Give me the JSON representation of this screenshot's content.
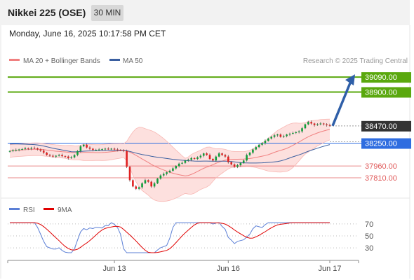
{
  "header": {
    "title": "Nikkei 225 (OSE)",
    "timeframe": "30 MIN"
  },
  "datetime": "Monday, June 16, 2025 10:17:58 PM CET",
  "legend": {
    "ma20": "MA 20 + Bollinger Bands",
    "ma50": "MA 50",
    "copyright": "Research © 2025 Trading Central",
    "rsi": "RSI",
    "rsi_ma": "9MA"
  },
  "colors": {
    "ma20": "#f08080",
    "ma50": "#3a5fa0",
    "bollinger_fill": "#fde0de",
    "candle_up": "#0f9e3a",
    "candle_down": "#e02020",
    "target": "#5aa80e",
    "pivot": "#2f6de0",
    "support": "#e05a5a",
    "last": "#333333",
    "arrow": "#2f5fa8",
    "rsi": "#5b7fd6",
    "rsi_ma": "#e00000"
  },
  "chart_data": [
    {
      "type": "candlestick",
      "title": "Nikkei 225 (OSE)",
      "timeframe": "30 MIN",
      "x_labels": [
        "Jun 13",
        "Jun 16",
        "Jun 17"
      ],
      "ylim": [
        37650,
        39180
      ],
      "levels": [
        {
          "value": 39090,
          "label": "39090.00",
          "kind": "resistance"
        },
        {
          "value": 38900,
          "label": "38900.00",
          "kind": "resistance"
        },
        {
          "value": 38470,
          "label": "38470.00",
          "kind": "last"
        },
        {
          "value": 38250,
          "label": "38250.00",
          "kind": "pivot"
        },
        {
          "value": 37960,
          "label": "37960.00",
          "kind": "support"
        },
        {
          "value": 37810,
          "label": "37810.00",
          "kind": "support"
        }
      ],
      "arrow": {
        "from": 38470,
        "to": 39090,
        "direction": "up"
      },
      "close_series": [
        38150,
        38160,
        38165,
        38170,
        38175,
        38185,
        38180,
        38190,
        38185,
        38170,
        38155,
        38130,
        38100,
        38090,
        38080,
        38090,
        38100,
        38085,
        38080,
        38060,
        38070,
        38100,
        38150,
        38210,
        38230,
        38195,
        38180,
        38165,
        38165,
        38170,
        38175,
        38180,
        38175,
        38180,
        38170,
        38165,
        38160,
        38150,
        37950,
        37780,
        37700,
        37670,
        37690,
        37740,
        37780,
        37760,
        37700,
        37740,
        37800,
        37840,
        37860,
        37880,
        37900,
        37930,
        37960,
        37990,
        38000,
        38030,
        38040,
        38060,
        38050,
        38070,
        38090,
        38120,
        38100,
        38050,
        38030,
        38080,
        38120,
        38100,
        38080,
        38010,
        37980,
        37950,
        37970,
        38000,
        38030,
        38100,
        38130,
        38170,
        38200,
        38230,
        38250,
        38280,
        38310,
        38330,
        38350,
        38360,
        38330,
        38340,
        38360,
        38370,
        38380,
        38390,
        38400,
        38440,
        38490,
        38520,
        38500,
        38480,
        38490,
        38500,
        38490,
        38480,
        38470
      ],
      "series": [
        {
          "name": "MA 20 + Bollinger Bands"
        },
        {
          "name": "MA 50"
        }
      ]
    },
    {
      "type": "line",
      "title": "RSI",
      "ylim": [
        15,
        78
      ],
      "ticks": [
        70,
        50,
        30
      ],
      "series": [
        {
          "name": "RSI"
        },
        {
          "name": "9MA"
        }
      ]
    }
  ]
}
